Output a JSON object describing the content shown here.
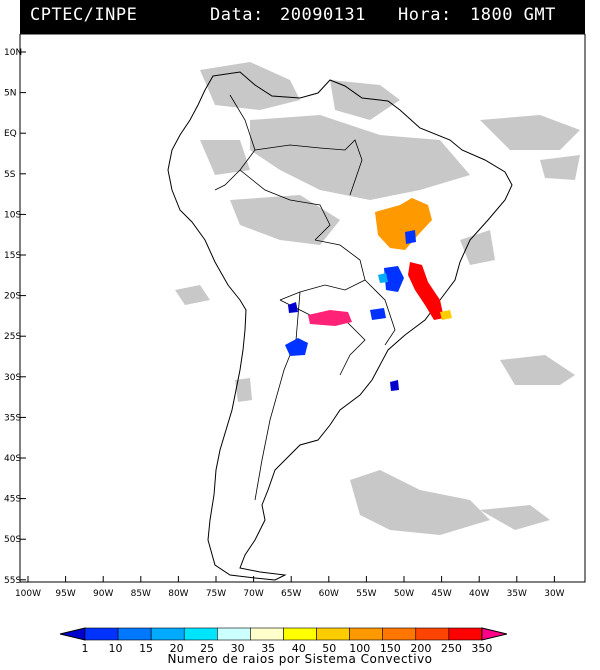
{
  "header": {
    "source": "CPTEC/INPE",
    "date_label": "Data:",
    "date": "20090131",
    "time_label": "Hora:",
    "time": "1800 GMT"
  },
  "map": {
    "lat_labels": [
      "10N",
      "5N",
      "EQ",
      "5S",
      "10S",
      "15S",
      "20S",
      "25S",
      "30S",
      "35S",
      "40S",
      "45S",
      "50S",
      "55S"
    ],
    "lon_labels": [
      "100W",
      "95W",
      "90W",
      "85W",
      "80W",
      "75W",
      "70W",
      "65W",
      "60W",
      "55W",
      "50W",
      "45W",
      "40W",
      "35W",
      "30W"
    ],
    "cloud_color": "#c8c8c8",
    "coast_color": "#000000"
  },
  "legend": {
    "title": "Numero de raios por Sistema Convectivo",
    "ticks": [
      "1",
      "10",
      "15",
      "20",
      "25",
      "30",
      "35",
      "40",
      "50",
      "100",
      "150",
      "200",
      "250",
      "350"
    ],
    "colors": [
      "#0000cc",
      "#0033ff",
      "#0077ff",
      "#00aaff",
      "#00e5ff",
      "#ccffff",
      "#ffffcc",
      "#ffff00",
      "#ffcc00",
      "#ff9900",
      "#ff7700",
      "#ff4400",
      "#ff0000",
      "#ff0088"
    ]
  },
  "systems": [
    {
      "name": "orange-bahia",
      "color": "#ff9900"
    },
    {
      "name": "red-minas",
      "color": "#ff0000"
    },
    {
      "name": "magenta-paraguay",
      "color": "#ff2277"
    }
  ]
}
